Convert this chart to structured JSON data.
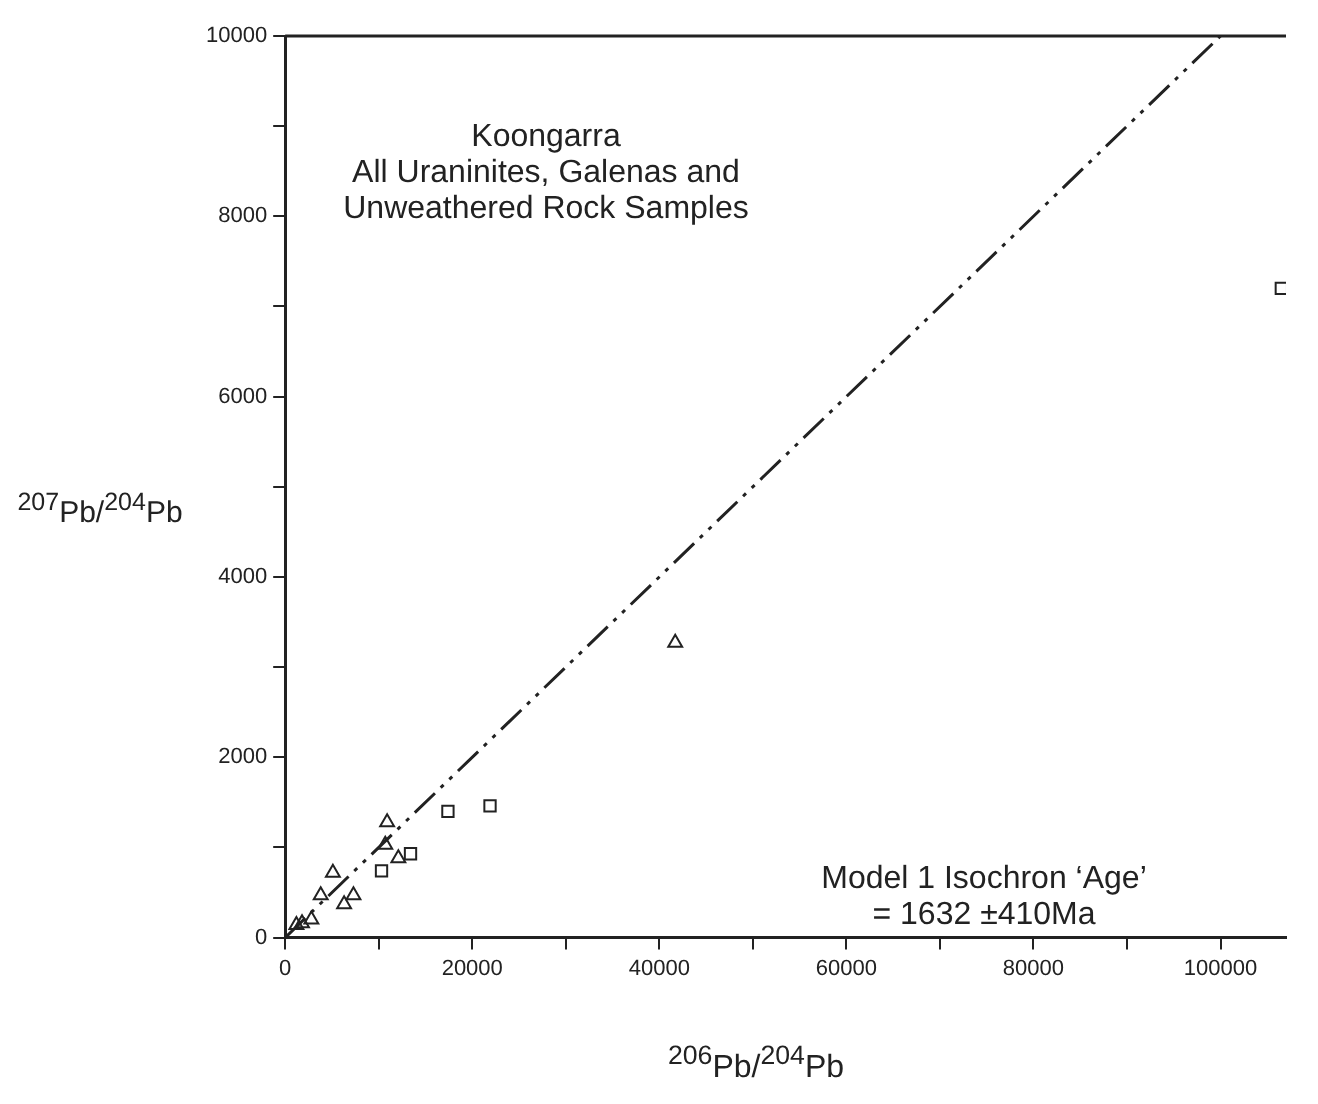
{
  "chart_data": {
    "type": "scatter",
    "title": "Koongarra",
    "subtitle": "All Uraninites, Galenas and Unweathered Rock Samples",
    "xlabel": "$^{206}$Pb/$^{204}$Pb",
    "ylabel": "$^{207}$Pb/$^{204}$Pb",
    "annotations": [
      "Model 1 Isochron ‘Age’ = 1632 ±410Ma"
    ],
    "xlim": [
      0,
      107000
    ],
    "ylim": [
      0,
      10000
    ],
    "xticks": [
      0,
      {
        "value": 10000,
        "label": null
      },
      20000,
      {
        "value": 30000,
        "label": null
      },
      40000,
      {
        "value": 50000,
        "label": null
      },
      60000,
      {
        "value": 70000,
        "label": null
      },
      80000,
      {
        "value": 90000,
        "label": null
      },
      100000
    ],
    "yticks": [
      0,
      {
        "value": 1000,
        "label": null
      },
      2000,
      {
        "value": 3000,
        "label": null
      },
      4000,
      {
        "value": 5000,
        "label": null
      },
      6000,
      {
        "value": 7000,
        "label": null
      },
      8000,
      {
        "value": 9000,
        "label": null
      },
      10000
    ],
    "grid": false,
    "legend": false,
    "series": [
      {
        "type": "scatter",
        "marker": "triangle",
        "color": "#222222",
        "x": [
          1200,
          1800,
          2800,
          3800,
          5100,
          6300,
          7300,
          10700,
          10900,
          12100,
          41700
        ],
        "values": [
          140,
          160,
          200,
          470,
          720,
          370,
          470,
          1030,
          1280,
          880,
          3270
        ]
      },
      {
        "type": "scatter",
        "marker": "square",
        "color": "#222222",
        "x": [
          10300,
          13400,
          17400,
          21900,
          106500
        ],
        "values": [
          740,
          930,
          1400,
          1460,
          7200
        ]
      },
      {
        "type": "line",
        "marker": "none",
        "line_style": "dashed",
        "color": "#222222",
        "x": [
          0,
          100000
        ],
        "values": [
          0,
          10000
        ]
      }
    ]
  }
}
